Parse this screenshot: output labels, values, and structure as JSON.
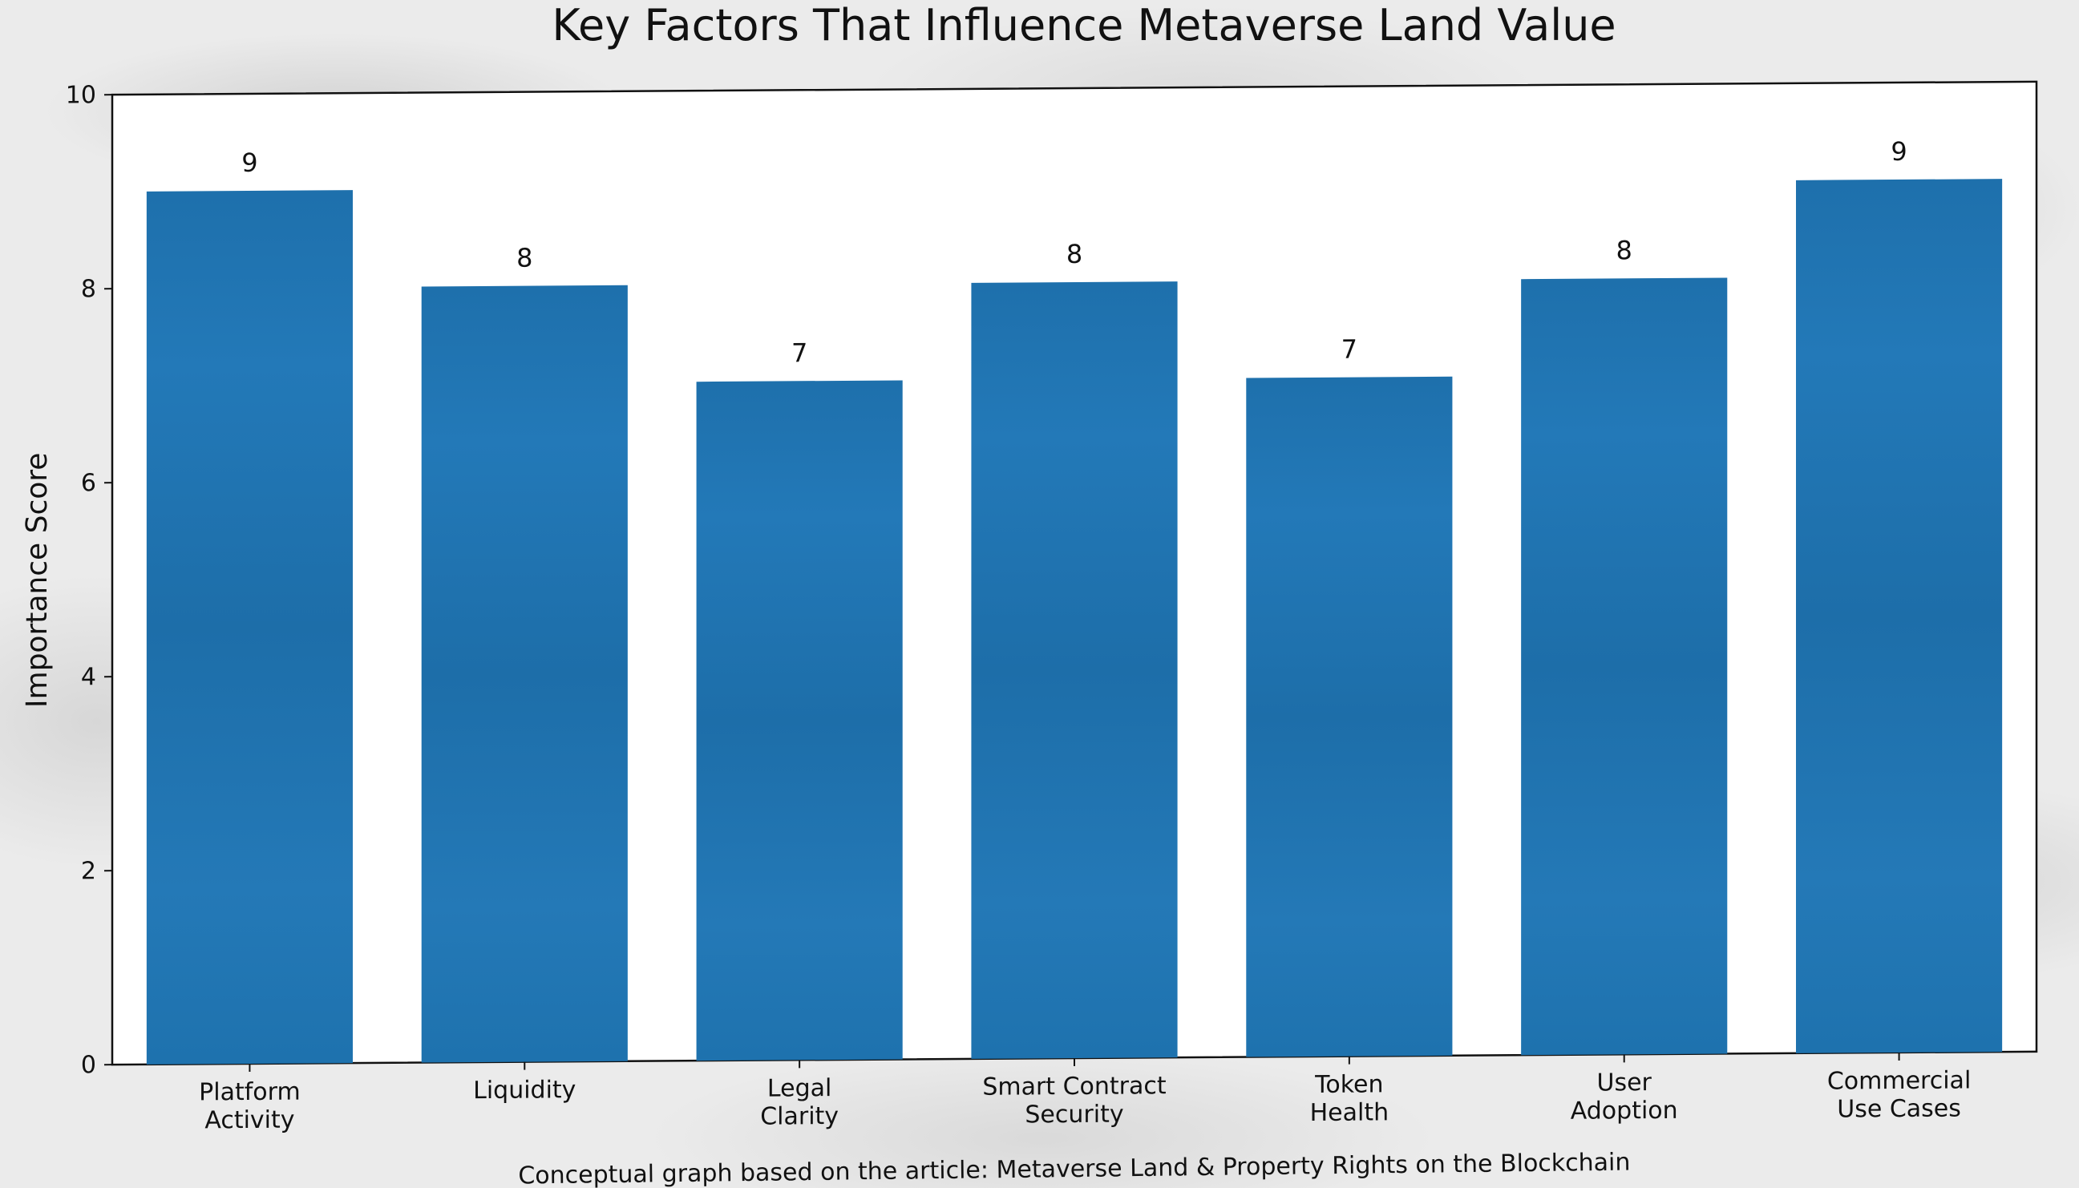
{
  "chart_data": {
    "type": "bar",
    "title": "Key Factors That Influence Metaverse Land Value",
    "xlabel": "",
    "ylabel": "Importance Score",
    "categories": [
      [
        "Platform",
        "Activity"
      ],
      [
        "Liquidity"
      ],
      [
        "Legal",
        "Clarity"
      ],
      [
        "Smart Contract",
        "Security"
      ],
      [
        "Token",
        "Health"
      ],
      [
        "User",
        "Adoption"
      ],
      [
        "Commercial",
        "Use Cases"
      ]
    ],
    "values": [
      9,
      8,
      7,
      8,
      7,
      8,
      9
    ],
    "data_labels": [
      "9",
      "8",
      "7",
      "8",
      "7",
      "8",
      "9"
    ],
    "ylim": [
      0,
      10
    ],
    "yticks": [
      0,
      2,
      4,
      6,
      8,
      10
    ],
    "grid": false,
    "legend": "none",
    "bar_color": "#1f77b4",
    "caption": "Conceptual graph based on the article: Metaverse Land & Property Rights on the Blockchain"
  }
}
